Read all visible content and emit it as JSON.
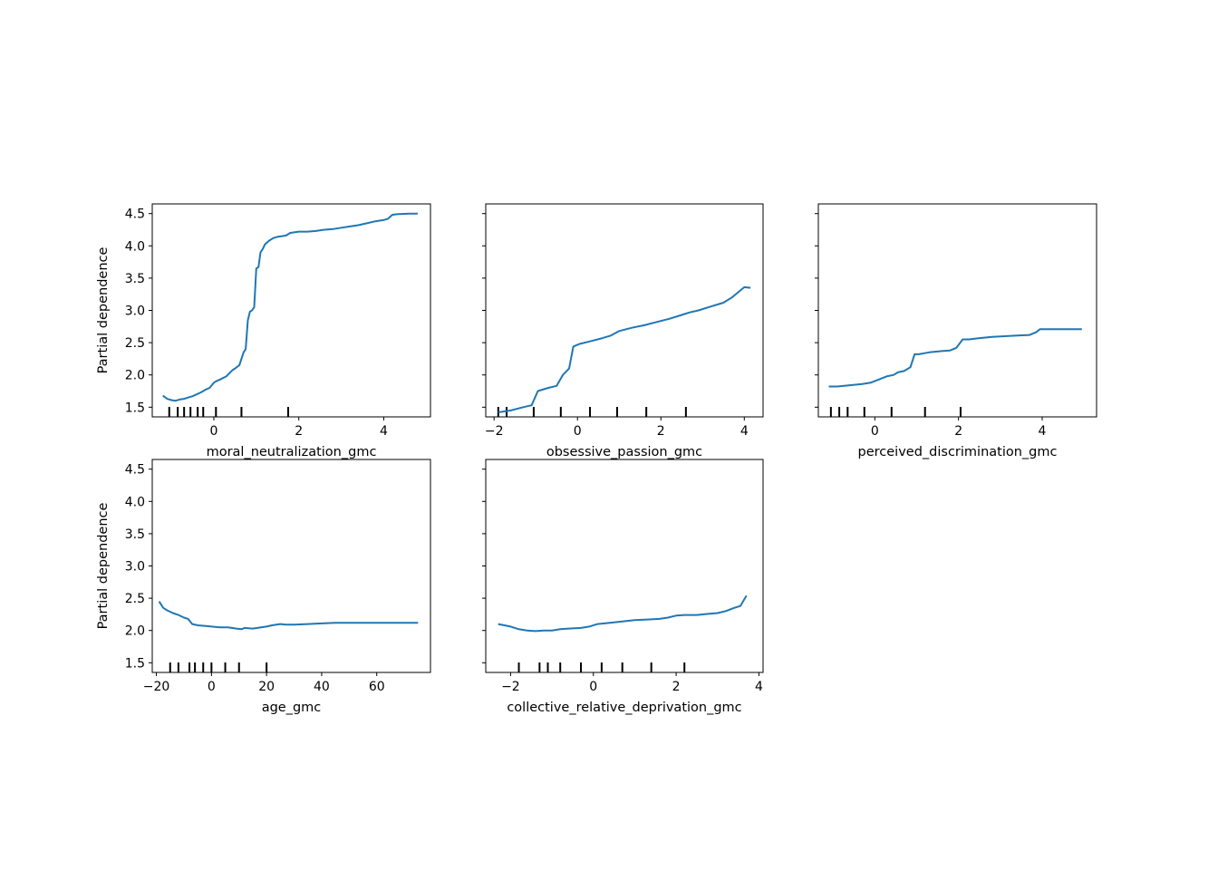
{
  "colors": {
    "line": "#1f77b4",
    "axes": "#000000",
    "rug": "#000000"
  },
  "chart_data": [
    {
      "type": "line",
      "xlabel": "moral_neutralization_gmc",
      "ylabel": "Partial dependence",
      "xlim": [
        -1.45,
        5.1
      ],
      "ylim": [
        1.35,
        4.65
      ],
      "xticks": [
        0,
        2,
        4
      ],
      "yticks": [
        1.5,
        2.0,
        2.5,
        3.0,
        3.5,
        4.0,
        4.5
      ],
      "x": [
        -1.2,
        -1.1,
        -1.0,
        -0.9,
        -0.8,
        -0.7,
        -0.6,
        -0.5,
        -0.4,
        -0.3,
        -0.2,
        -0.1,
        0.0,
        0.05,
        0.15,
        0.3,
        0.4,
        0.45,
        0.5,
        0.6,
        0.7,
        0.75,
        0.8,
        0.85,
        0.9,
        0.95,
        1.0,
        1.05,
        1.1,
        1.15,
        1.2,
        1.3,
        1.4,
        1.5,
        1.6,
        1.7,
        1.8,
        2.0,
        2.2,
        2.4,
        2.6,
        2.8,
        3.0,
        3.2,
        3.4,
        3.6,
        3.8,
        4.0,
        4.1,
        4.2,
        4.3,
        4.6,
        4.8
      ],
      "y": [
        1.68,
        1.63,
        1.61,
        1.6,
        1.62,
        1.63,
        1.65,
        1.67,
        1.7,
        1.73,
        1.77,
        1.8,
        1.88,
        1.9,
        1.93,
        1.98,
        2.05,
        2.08,
        2.1,
        2.15,
        2.35,
        2.4,
        2.85,
        2.98,
        3.0,
        3.05,
        3.65,
        3.67,
        3.9,
        3.95,
        4.02,
        4.08,
        4.12,
        4.14,
        4.15,
        4.16,
        4.2,
        4.22,
        4.22,
        4.23,
        4.25,
        4.26,
        4.28,
        4.3,
        4.32,
        4.35,
        4.38,
        4.4,
        4.42,
        4.48,
        4.49,
        4.5,
        4.5
      ],
      "rug": [
        -1.05,
        -0.85,
        -0.7,
        -0.55,
        -0.38,
        -0.25,
        0.05,
        0.65,
        1.75
      ]
    },
    {
      "type": "line",
      "xlabel": "obsessive_passion_gmc",
      "ylabel": "",
      "xlim": [
        -2.2,
        4.45
      ],
      "ylim": [
        1.35,
        4.65
      ],
      "xticks": [
        -2,
        0,
        2,
        4
      ],
      "yticks": [
        1.5,
        2.0,
        2.5,
        3.0,
        3.5,
        4.0,
        4.5
      ],
      "x": [
        -1.9,
        -1.6,
        -1.3,
        -1.1,
        -0.95,
        -0.7,
        -0.5,
        -0.35,
        -0.2,
        -0.1,
        0.05,
        0.3,
        0.6,
        0.8,
        1.0,
        1.3,
        1.6,
        1.9,
        2.2,
        2.5,
        2.7,
        2.9,
        3.2,
        3.5,
        3.7,
        3.85,
        4.0,
        4.15
      ],
      "y": [
        1.42,
        1.45,
        1.5,
        1.53,
        1.75,
        1.8,
        1.83,
        2.0,
        2.1,
        2.44,
        2.48,
        2.52,
        2.57,
        2.61,
        2.68,
        2.73,
        2.77,
        2.82,
        2.87,
        2.93,
        2.97,
        3.0,
        3.06,
        3.12,
        3.2,
        3.28,
        3.36,
        3.35
      ],
      "rug": [
        -1.9,
        -1.7,
        -1.05,
        -0.4,
        0.3,
        0.95,
        1.65,
        2.6
      ]
    },
    {
      "type": "line",
      "xlabel": "perceived_discrimination_gmc",
      "ylabel": "",
      "xlim": [
        -1.35,
        5.3
      ],
      "ylim": [
        1.35,
        4.65
      ],
      "xticks": [
        0,
        2,
        4
      ],
      "yticks": [
        1.5,
        2.0,
        2.5,
        3.0,
        3.5,
        4.0,
        4.5
      ],
      "x": [
        -1.1,
        -0.9,
        -0.6,
        -0.3,
        -0.1,
        0.1,
        0.3,
        0.45,
        0.55,
        0.7,
        0.85,
        0.95,
        1.05,
        1.3,
        1.6,
        1.8,
        1.95,
        2.1,
        2.25,
        2.5,
        2.8,
        3.1,
        3.4,
        3.7,
        3.85,
        3.95,
        4.3,
        4.7,
        4.95
      ],
      "y": [
        1.82,
        1.82,
        1.84,
        1.86,
        1.88,
        1.93,
        1.98,
        2.0,
        2.04,
        2.06,
        2.12,
        2.32,
        2.32,
        2.35,
        2.37,
        2.38,
        2.42,
        2.55,
        2.55,
        2.57,
        2.59,
        2.6,
        2.61,
        2.62,
        2.66,
        2.71,
        2.71,
        2.71,
        2.71
      ],
      "rug": [
        -1.05,
        -0.85,
        -0.65,
        -0.25,
        0.4,
        1.2,
        2.05
      ]
    },
    {
      "type": "line",
      "xlabel": "age_gmc",
      "ylabel": "Partial dependence",
      "xlim": [
        -21.5,
        79.5
      ],
      "ylim": [
        1.35,
        4.65
      ],
      "xticks": [
        -20,
        0,
        20,
        40,
        60
      ],
      "yticks": [
        1.5,
        2.0,
        2.5,
        3.0,
        3.5,
        4.0,
        4.5
      ],
      "x": [
        -19,
        -17.5,
        -16,
        -14,
        -12,
        -10,
        -8.5,
        -7,
        -5,
        -2,
        0,
        3,
        6,
        9,
        11,
        12,
        15,
        18,
        20,
        22,
        25,
        27,
        30,
        35,
        40,
        45,
        50,
        60,
        70,
        75
      ],
      "y": [
        2.45,
        2.35,
        2.31,
        2.27,
        2.24,
        2.2,
        2.18,
        2.1,
        2.08,
        2.07,
        2.06,
        2.05,
        2.05,
        2.03,
        2.02,
        2.04,
        2.03,
        2.05,
        2.06,
        2.08,
        2.1,
        2.09,
        2.09,
        2.1,
        2.11,
        2.12,
        2.12,
        2.12,
        2.12,
        2.12
      ],
      "rug": [
        -15,
        -12,
        -8,
        -6,
        -3,
        0,
        5,
        10,
        20
      ]
    },
    {
      "type": "line",
      "xlabel": "collective_relative_deprivation_gmc",
      "ylabel": "",
      "xlim": [
        -2.6,
        4.1
      ],
      "ylim": [
        1.35,
        4.65
      ],
      "xticks": [
        -2,
        0,
        2,
        4
      ],
      "yticks": [
        1.5,
        2.0,
        2.5,
        3.0,
        3.5,
        4.0,
        4.5
      ],
      "x": [
        -2.3,
        -2.0,
        -1.8,
        -1.6,
        -1.4,
        -1.2,
        -1.0,
        -0.8,
        -0.6,
        -0.3,
        -0.1,
        0.1,
        0.4,
        0.7,
        1.0,
        1.3,
        1.6,
        1.8,
        2.0,
        2.2,
        2.5,
        2.8,
        3.0,
        3.2,
        3.4,
        3.55,
        3.7
      ],
      "y": [
        2.1,
        2.06,
        2.02,
        2.0,
        1.99,
        2.0,
        2.0,
        2.02,
        2.03,
        2.04,
        2.06,
        2.1,
        2.12,
        2.14,
        2.16,
        2.17,
        2.18,
        2.2,
        2.23,
        2.24,
        2.24,
        2.26,
        2.27,
        2.3,
        2.35,
        2.38,
        2.54
      ],
      "rug": [
        -1.8,
        -1.3,
        -1.1,
        -0.8,
        -0.3,
        0.2,
        0.7,
        1.4,
        2.2
      ]
    }
  ]
}
